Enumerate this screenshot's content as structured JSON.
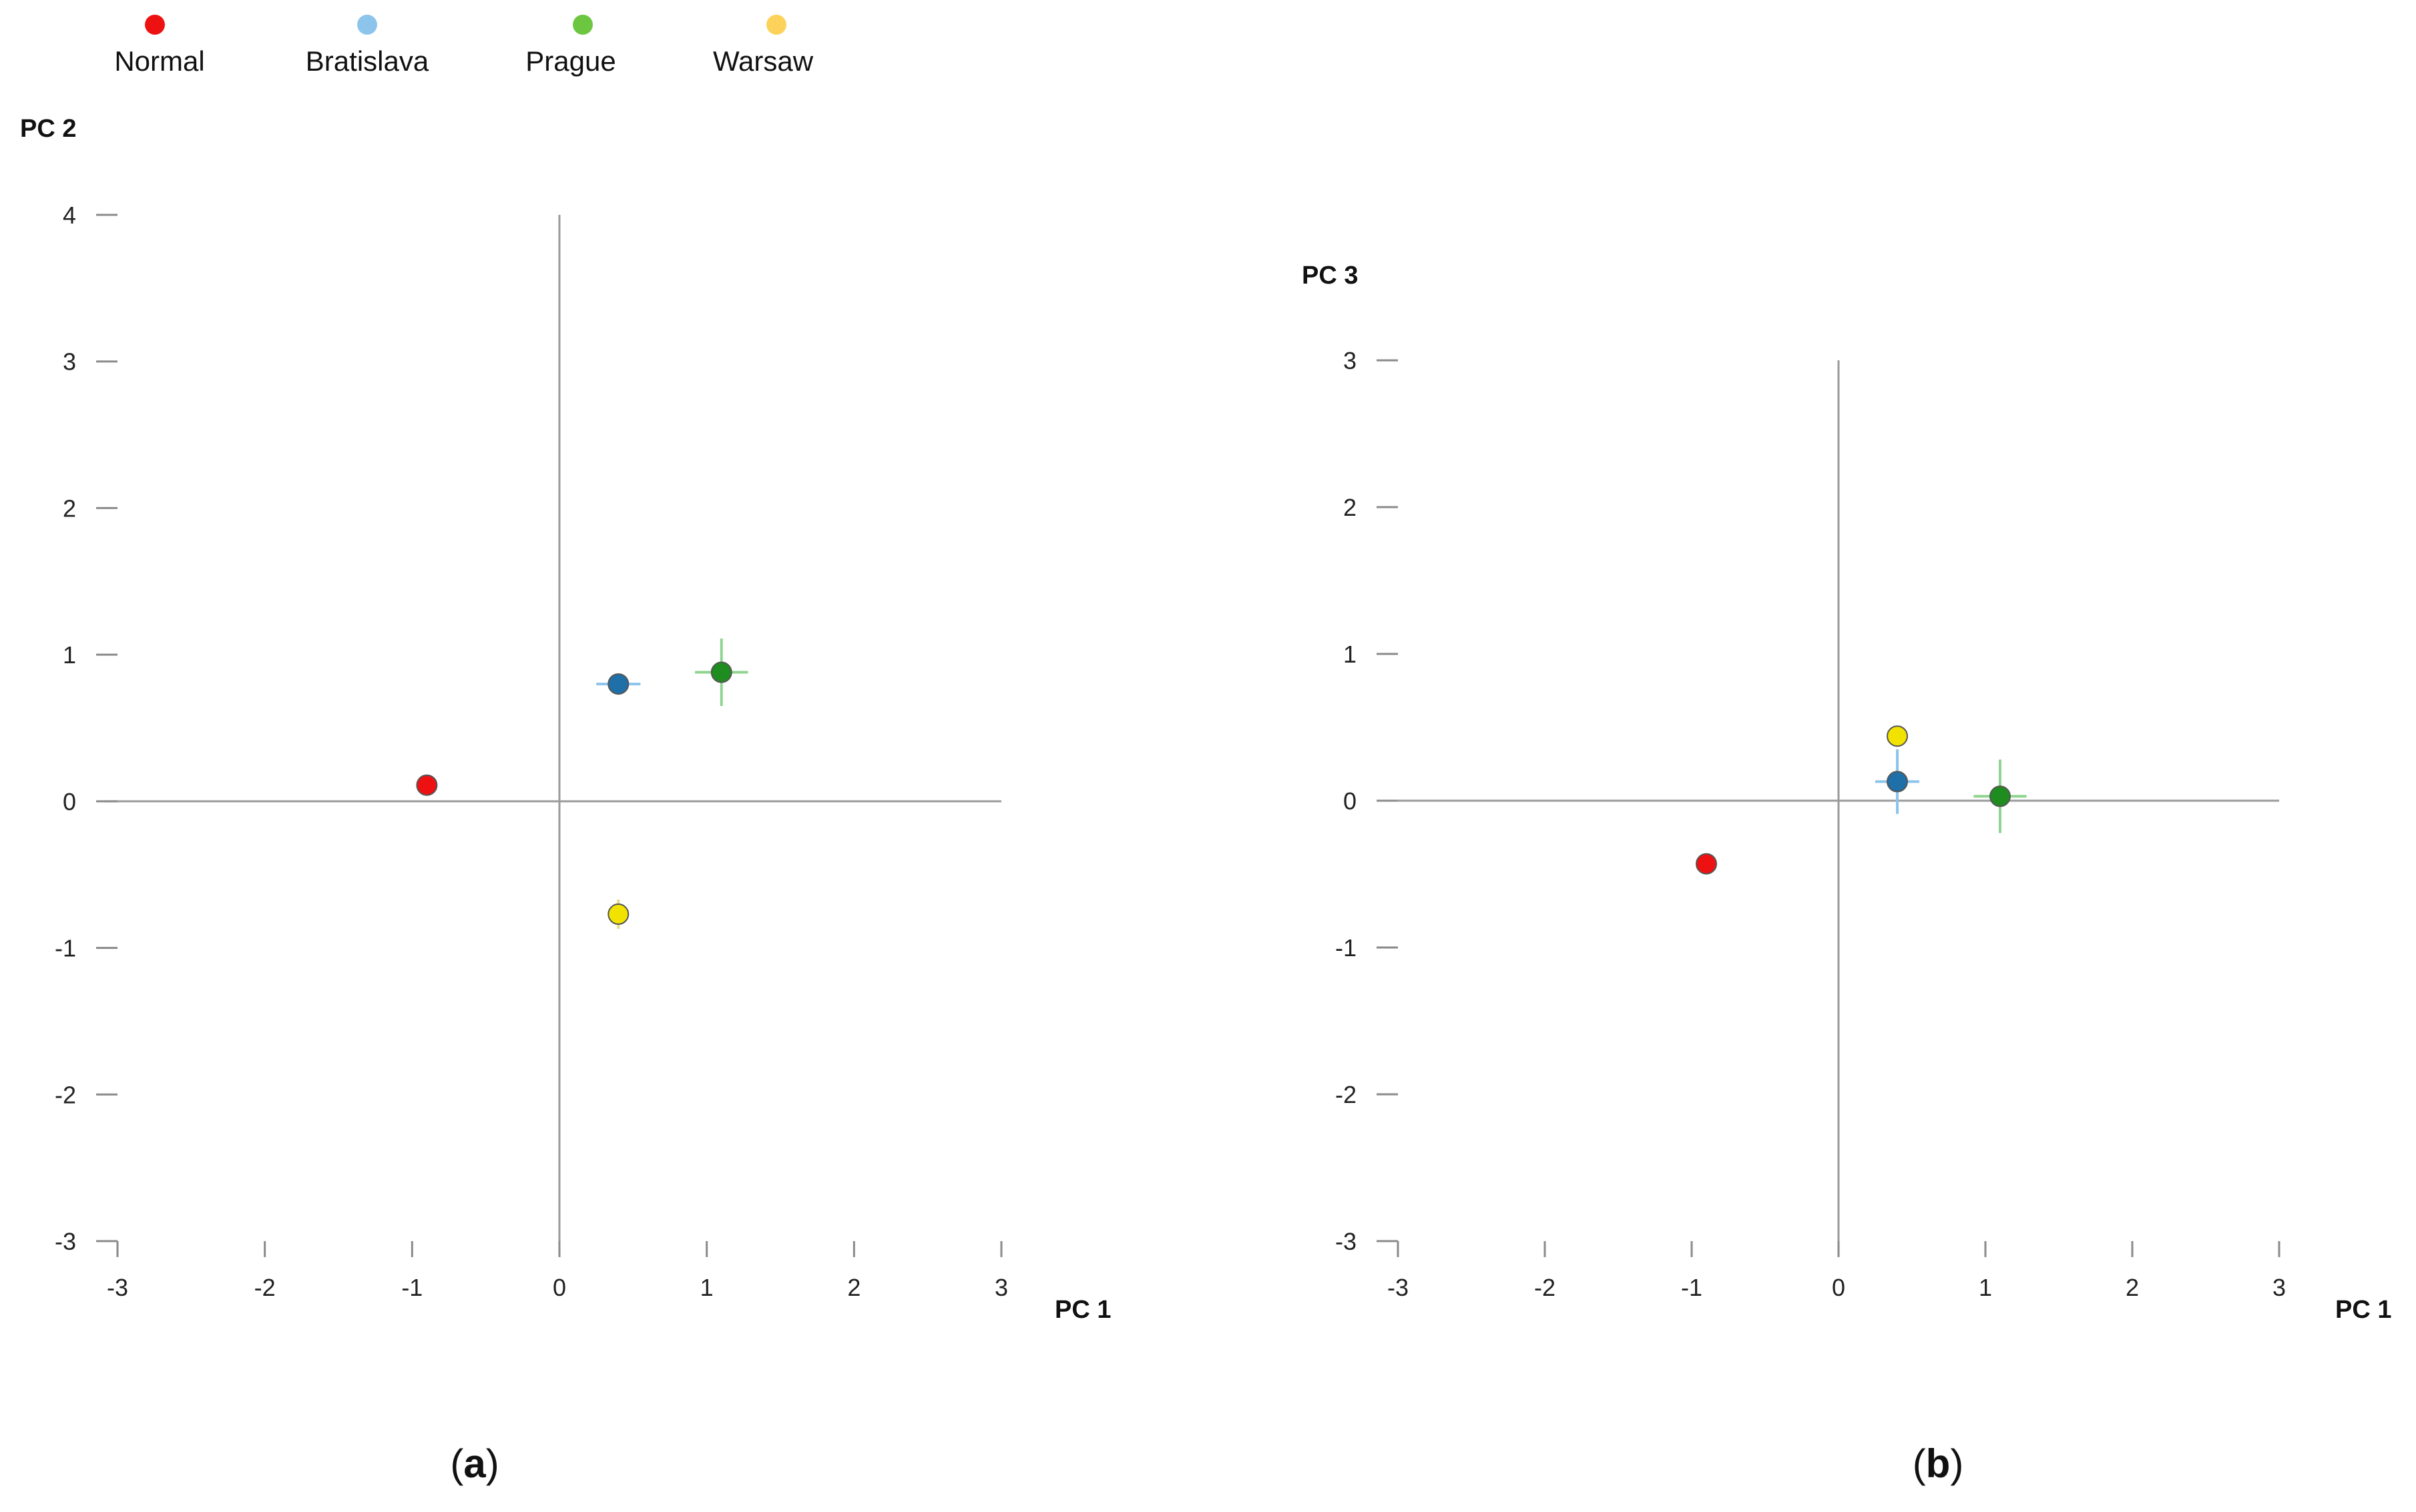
{
  "legend": {
    "items": [
      {
        "label": "Normal",
        "color": "#ee1111"
      },
      {
        "label": "Bratislava",
        "color": "#8cc4ec"
      },
      {
        "label": "Prague",
        "color": "#6cc640"
      },
      {
        "label": "Warsaw",
        "color": "#fcd25a"
      }
    ]
  },
  "panel_labels": {
    "a": "a",
    "b": "b"
  },
  "chart_data": [
    {
      "type": "scatter",
      "panel": "a",
      "title": "",
      "xlabel": "PC 1",
      "ylabel": "PC 2",
      "xlim": [
        -3,
        3
      ],
      "ylim": [
        -3,
        4
      ],
      "xticks": [
        -3,
        -2,
        -1,
        0,
        1,
        2,
        3
      ],
      "yticks": [
        -3,
        -2,
        -1,
        0,
        1,
        2,
        3,
        4
      ],
      "tick_labels_x": [
        "-3",
        "-2",
        "-1",
        "0",
        "1",
        "2",
        "3"
      ],
      "tick_labels_y": [
        "-3",
        "-2",
        "-1",
        "0",
        "1",
        "2",
        "3",
        "4"
      ],
      "series": [
        {
          "name": "Normal",
          "x": -0.9,
          "y": 0.11,
          "xerr": 0.0,
          "yerr": 0.0,
          "color": "#ee1111"
        },
        {
          "name": "Bratislava",
          "x": 0.4,
          "y": 0.8,
          "xerr": 0.15,
          "yerr": 0.05,
          "color": "#1f6fa8",
          "err_color": "#8cc4ec"
        },
        {
          "name": "Prague",
          "x": 1.1,
          "y": 0.88,
          "xerr": 0.18,
          "yerr": 0.23,
          "color": "#1e8c1e",
          "err_color": "#8fd48f"
        },
        {
          "name": "Warsaw",
          "x": 0.4,
          "y": -0.77,
          "xerr": 0.0,
          "yerr": 0.1,
          "color": "#f2e200",
          "err_color": "#e8dc80"
        }
      ]
    },
    {
      "type": "scatter",
      "panel": "b",
      "title": "",
      "xlabel": "PC 1",
      "ylabel": "PC 3",
      "xlim": [
        -3,
        3
      ],
      "ylim": [
        -3,
        3
      ],
      "xticks": [
        -3,
        -2,
        -1,
        0,
        1,
        2,
        3
      ],
      "yticks": [
        -3,
        -2,
        -1,
        0,
        1,
        2,
        3
      ],
      "tick_labels_x": [
        "-3",
        "-2",
        "-1",
        "0",
        "1",
        "2",
        "3"
      ],
      "tick_labels_y": [
        "-3",
        "-2",
        "-1",
        "0",
        "1",
        "2",
        "3"
      ],
      "series": [
        {
          "name": "Normal",
          "x": -0.9,
          "y": -0.43,
          "xerr": 0.0,
          "yerr": 0.0,
          "color": "#ee1111"
        },
        {
          "name": "Bratislava",
          "x": 0.4,
          "y": 0.13,
          "xerr": 0.15,
          "yerr": 0.22,
          "color": "#1f6fa8",
          "err_color": "#8cc4ec"
        },
        {
          "name": "Prague",
          "x": 1.1,
          "y": 0.03,
          "xerr": 0.18,
          "yerr": 0.25,
          "color": "#1e8c1e",
          "err_color": "#8fd48f"
        },
        {
          "name": "Warsaw",
          "x": 0.4,
          "y": 0.44,
          "xerr": 0.0,
          "yerr": 0.0,
          "color": "#f2e200",
          "err_color": "#e8dc80"
        }
      ]
    }
  ]
}
